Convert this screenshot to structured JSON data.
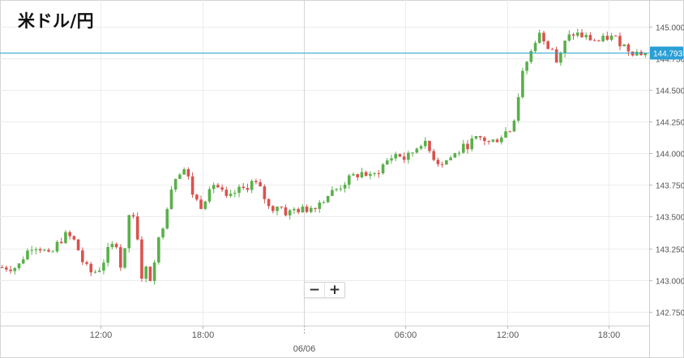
{
  "chart_data": {
    "type": "candlestick",
    "title": "米ドル/円",
    "y_ticks": [
      "145.000",
      "144.750",
      "144.500",
      "144.250",
      "144.000",
      "143.750",
      "143.500",
      "143.250",
      "143.000",
      "142.750"
    ],
    "x_ticks": [
      {
        "label": "12:00",
        "hour": 12
      },
      {
        "label": "18:00",
        "hour": 18
      },
      {
        "label": "06:00",
        "hour": 30
      },
      {
        "label": "12:00",
        "hour": 36
      },
      {
        "label": "18:00",
        "hour": 42
      }
    ],
    "date_label": {
      "label": "06/06",
      "hour": 24
    },
    "ylim": [
      142.64,
      145.21
    ],
    "xlim_hours": [
      6.05,
      44.4
    ],
    "current_price": "144.793",
    "colors": {
      "up": "#59b04a",
      "down": "#d9534f",
      "price_line": "#2aa7c9",
      "price_label": "#2a9fd6",
      "grid": "#ececec"
    },
    "points": [
      [
        7.1,
        143.1
      ],
      [
        7.5,
        143.2
      ],
      [
        8.0,
        143.28
      ],
      [
        8.5,
        143.25
      ],
      [
        9.0,
        143.18
      ],
      [
        9.5,
        143.3
      ],
      [
        10.0,
        143.36
      ],
      [
        10.5,
        143.3
      ],
      [
        11.0,
        143.12
      ],
      [
        11.5,
        143.05
      ],
      [
        12.0,
        143.1
      ],
      [
        12.5,
        143.25
      ],
      [
        13.0,
        143.3
      ],
      [
        13.3,
        143.02
      ],
      [
        13.7,
        143.55
      ],
      [
        14.1,
        143.35
      ],
      [
        14.5,
        143.05
      ],
      [
        14.9,
        143.0
      ],
      [
        15.3,
        143.25
      ],
      [
        15.7,
        143.45
      ],
      [
        16.1,
        143.7
      ],
      [
        16.5,
        143.85
      ],
      [
        17.0,
        143.88
      ],
      [
        17.5,
        143.65
      ],
      [
        18.0,
        143.58
      ],
      [
        18.5,
        143.78
      ],
      [
        19.0,
        143.72
      ],
      [
        19.5,
        143.62
      ],
      [
        20.0,
        143.7
      ],
      [
        20.5,
        143.72
      ],
      [
        21.0,
        143.78
      ],
      [
        21.5,
        143.7
      ],
      [
        22.0,
        143.55
      ],
      [
        22.5,
        143.6
      ],
      [
        23.0,
        143.52
      ],
      [
        23.5,
        143.56
      ],
      [
        24.0,
        143.55
      ],
      [
        24.5,
        143.58
      ],
      [
        25.0,
        143.62
      ],
      [
        25.5,
        143.68
      ],
      [
        26.0,
        143.72
      ],
      [
        26.5,
        143.78
      ],
      [
        27.0,
        143.82
      ],
      [
        27.5,
        143.85
      ],
      [
        28.0,
        143.8
      ],
      [
        28.5,
        143.88
      ],
      [
        29.0,
        143.95
      ],
      [
        29.5,
        144.0
      ],
      [
        30.0,
        143.95
      ],
      [
        30.5,
        144.02
      ],
      [
        31.0,
        144.1
      ],
      [
        31.5,
        144.0
      ],
      [
        32.0,
        143.92
      ],
      [
        32.5,
        143.95
      ],
      [
        33.0,
        144.0
      ],
      [
        33.5,
        144.05
      ],
      [
        34.0,
        144.1
      ],
      [
        34.5,
        144.12
      ],
      [
        35.0,
        144.08
      ],
      [
        35.5,
        144.12
      ],
      [
        36.0,
        144.18
      ],
      [
        36.4,
        144.3
      ],
      [
        36.8,
        144.55
      ],
      [
        37.2,
        144.72
      ],
      [
        37.6,
        144.88
      ],
      [
        38.0,
        144.95
      ],
      [
        38.5,
        144.85
      ],
      [
        39.0,
        144.7
      ],
      [
        39.5,
        144.9
      ],
      [
        40.0,
        144.95
      ],
      [
        40.5,
        144.92
      ],
      [
        41.0,
        144.9
      ],
      [
        41.5,
        144.88
      ],
      [
        42.0,
        144.92
      ],
      [
        42.5,
        144.9
      ],
      [
        43.0,
        144.84
      ],
      [
        43.5,
        144.8
      ],
      [
        44.0,
        144.79
      ]
    ]
  }
}
